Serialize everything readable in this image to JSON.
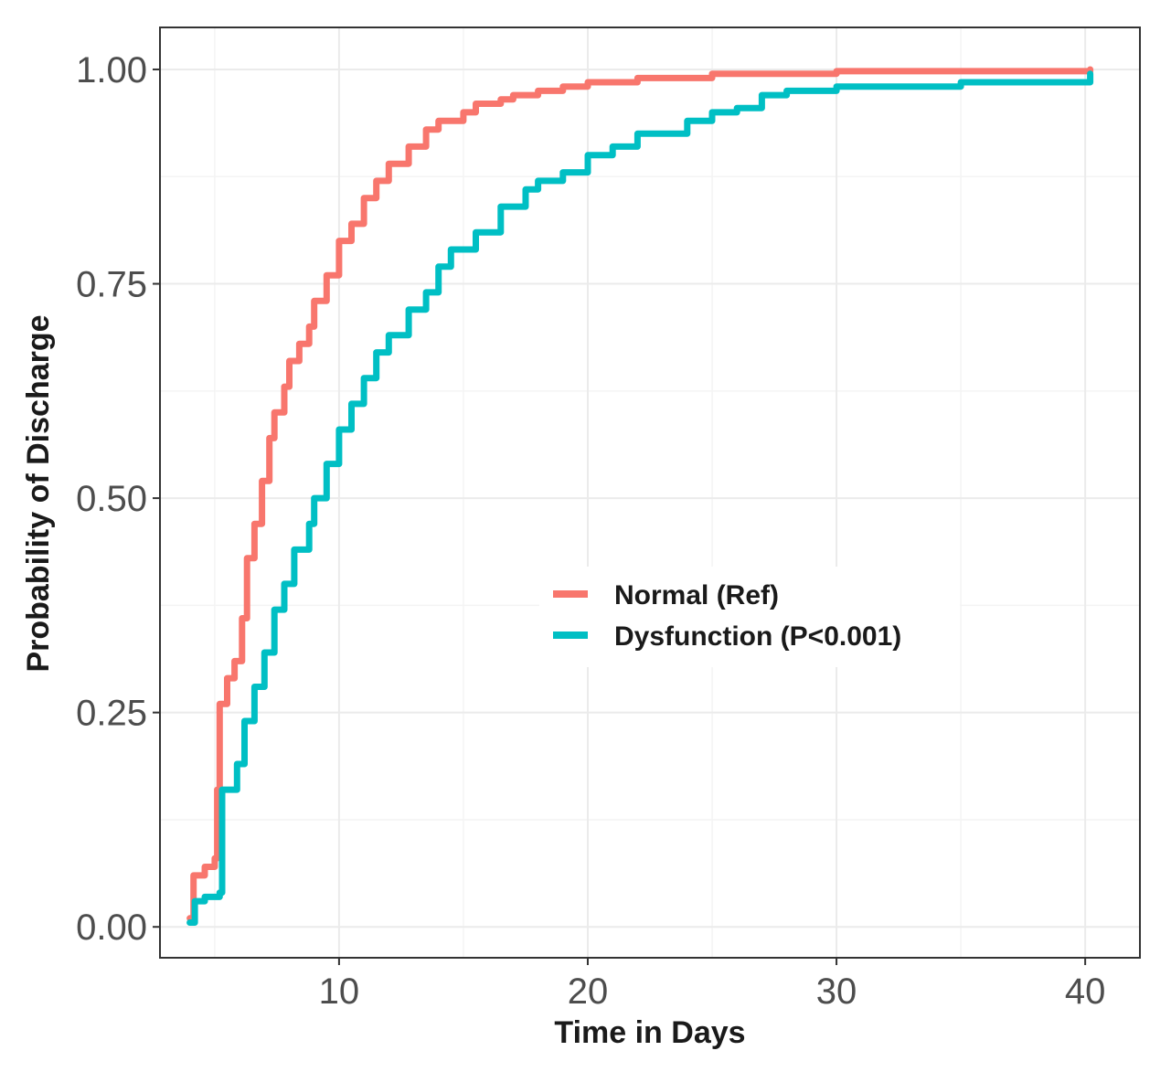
{
  "chart_data": {
    "type": "line",
    "title": "",
    "xlabel": "Time in Days",
    "ylabel": "Probability of Discharge",
    "xlim": [
      2.8,
      42.2
    ],
    "ylim": [
      -0.036,
      1.049
    ],
    "x_ticks": [
      10,
      20,
      30,
      40
    ],
    "x_tick_labels": [
      "10",
      "20",
      "30",
      "40"
    ],
    "y_ticks": [
      0,
      0.25,
      0.5,
      0.75,
      1.0
    ],
    "y_tick_labels": [
      "0.00",
      "0.25",
      "0.50",
      "0.75",
      "1.00"
    ],
    "grid": true,
    "legend_position": "center-right",
    "series": [
      {
        "name": "Normal (Ref)",
        "color": "#F8766D",
        "points": [
          [
            4.0,
            0.01
          ],
          [
            4.15,
            0.06
          ],
          [
            4.6,
            0.07
          ],
          [
            5.0,
            0.08
          ],
          [
            5.1,
            0.16
          ],
          [
            5.2,
            0.26
          ],
          [
            5.5,
            0.29
          ],
          [
            5.8,
            0.31
          ],
          [
            6.1,
            0.36
          ],
          [
            6.3,
            0.43
          ],
          [
            6.6,
            0.47
          ],
          [
            6.9,
            0.52
          ],
          [
            7.2,
            0.57
          ],
          [
            7.4,
            0.6
          ],
          [
            7.8,
            0.63
          ],
          [
            8.0,
            0.66
          ],
          [
            8.4,
            0.68
          ],
          [
            8.8,
            0.7
          ],
          [
            9.0,
            0.73
          ],
          [
            9.5,
            0.76
          ],
          [
            10.0,
            0.8
          ],
          [
            10.5,
            0.82
          ],
          [
            11.0,
            0.85
          ],
          [
            11.5,
            0.87
          ],
          [
            12.0,
            0.89
          ],
          [
            12.8,
            0.91
          ],
          [
            13.5,
            0.93
          ],
          [
            14.0,
            0.94
          ],
          [
            15.0,
            0.95
          ],
          [
            15.5,
            0.96
          ],
          [
            16.5,
            0.965
          ],
          [
            17.0,
            0.97
          ],
          [
            18.0,
            0.975
          ],
          [
            19.0,
            0.98
          ],
          [
            20.0,
            0.985
          ],
          [
            22.0,
            0.99
          ],
          [
            25.0,
            0.995
          ],
          [
            30.0,
            0.998
          ],
          [
            40.2,
            1.0
          ]
        ]
      },
      {
        "name": "Dysfunction (P<0.001)",
        "color": "#00BFC4",
        "points": [
          [
            4.0,
            0.005
          ],
          [
            4.2,
            0.03
          ],
          [
            4.6,
            0.035
          ],
          [
            5.2,
            0.04
          ],
          [
            5.3,
            0.16
          ],
          [
            5.9,
            0.19
          ],
          [
            6.2,
            0.24
          ],
          [
            6.6,
            0.28
          ],
          [
            7.0,
            0.32
          ],
          [
            7.4,
            0.37
          ],
          [
            7.8,
            0.4
          ],
          [
            8.2,
            0.44
          ],
          [
            8.8,
            0.47
          ],
          [
            9.0,
            0.5
          ],
          [
            9.5,
            0.54
          ],
          [
            10.0,
            0.58
          ],
          [
            10.5,
            0.61
          ],
          [
            11.0,
            0.64
          ],
          [
            11.5,
            0.67
          ],
          [
            12.0,
            0.69
          ],
          [
            12.8,
            0.72
          ],
          [
            13.5,
            0.74
          ],
          [
            14.0,
            0.77
          ],
          [
            14.5,
            0.79
          ],
          [
            15.5,
            0.81
          ],
          [
            16.5,
            0.84
          ],
          [
            17.5,
            0.86
          ],
          [
            18.0,
            0.87
          ],
          [
            19.0,
            0.88
          ],
          [
            20.0,
            0.9
          ],
          [
            21.0,
            0.91
          ],
          [
            22.0,
            0.925
          ],
          [
            24.0,
            0.94
          ],
          [
            25.0,
            0.95
          ],
          [
            26.0,
            0.955
          ],
          [
            27.0,
            0.97
          ],
          [
            28.0,
            0.975
          ],
          [
            30.0,
            0.98
          ],
          [
            35.0,
            0.985
          ],
          [
            40.2,
            0.995
          ]
        ]
      }
    ]
  }
}
